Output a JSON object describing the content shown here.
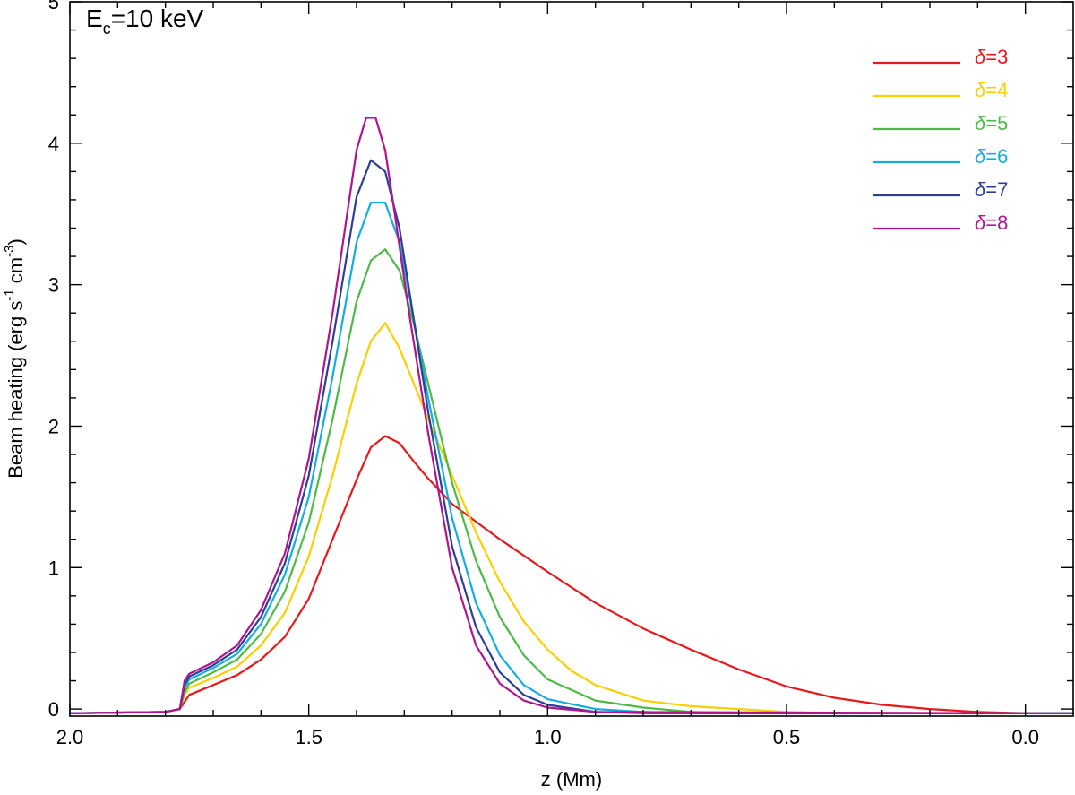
{
  "chart_data": {
    "type": "line",
    "annotation": {
      "main": "E",
      "sub": "c",
      "rest": "=10 keV"
    },
    "xlabel": "z (Mm)",
    "ylabel": {
      "part1": "Beam heating (erg s",
      "sup1": "-1",
      "part2": " cm",
      "sup2": "-3",
      "part3": ")"
    },
    "xlim": [
      2.0,
      -0.1
    ],
    "ylim": [
      -0.05,
      5.0
    ],
    "xaxis_reversed": true,
    "xticks": [
      2.0,
      1.5,
      1.0,
      0.5,
      0.0
    ],
    "xtick_labels": [
      "2.0",
      "1.5",
      "1.0",
      "0.5",
      "0.0"
    ],
    "yticks": [
      0,
      1,
      2,
      3,
      4,
      5
    ],
    "ytick_labels": [
      "0",
      "1",
      "2",
      "3",
      "4",
      "5"
    ],
    "legend_placement": "top-right",
    "series": [
      {
        "name": "δ=3",
        "greek": "δ",
        "suffix": "=3",
        "color": "#e8191b",
        "x": [
          2.0,
          1.8,
          1.77,
          1.76,
          1.75,
          1.7,
          1.65,
          1.6,
          1.55,
          1.5,
          1.45,
          1.4,
          1.37,
          1.34,
          1.31,
          1.28,
          1.25,
          1.2,
          1.1,
          1.0,
          0.9,
          0.8,
          0.7,
          0.6,
          0.5,
          0.4,
          0.3,
          0.2,
          0.1,
          0.0,
          -0.1
        ],
        "y": [
          -0.03,
          -0.02,
          0.0,
          0.05,
          0.1,
          0.17,
          0.24,
          0.35,
          0.51,
          0.78,
          1.2,
          1.62,
          1.85,
          1.93,
          1.88,
          1.75,
          1.63,
          1.45,
          1.2,
          0.97,
          0.75,
          0.57,
          0.42,
          0.28,
          0.16,
          0.08,
          0.03,
          0.0,
          -0.02,
          -0.03,
          -0.03
        ]
      },
      {
        "name": "δ=4",
        "greek": "δ",
        "suffix": "=4",
        "color": "#f9cf00",
        "x": [
          2.0,
          1.8,
          1.77,
          1.76,
          1.75,
          1.7,
          1.65,
          1.6,
          1.55,
          1.5,
          1.45,
          1.4,
          1.37,
          1.34,
          1.31,
          1.28,
          1.25,
          1.2,
          1.15,
          1.1,
          1.05,
          1.0,
          0.95,
          0.9,
          0.8,
          0.7,
          0.6,
          0.5,
          0.4,
          0.3,
          0.0,
          -0.1
        ],
        "y": [
          -0.03,
          -0.02,
          0.0,
          0.1,
          0.15,
          0.22,
          0.3,
          0.45,
          0.68,
          1.08,
          1.65,
          2.3,
          2.6,
          2.73,
          2.55,
          2.3,
          2.05,
          1.65,
          1.25,
          0.9,
          0.62,
          0.42,
          0.27,
          0.17,
          0.06,
          0.02,
          0.0,
          -0.02,
          -0.03,
          -0.03,
          -0.03,
          -0.03
        ]
      },
      {
        "name": "δ=5",
        "greek": "δ",
        "suffix": "=5",
        "color": "#4dba48",
        "x": [
          2.0,
          1.8,
          1.77,
          1.76,
          1.75,
          1.7,
          1.65,
          1.6,
          1.55,
          1.5,
          1.45,
          1.4,
          1.37,
          1.34,
          1.31,
          1.28,
          1.25,
          1.2,
          1.15,
          1.1,
          1.05,
          1.0,
          0.9,
          0.8,
          0.7,
          0.6,
          0.5,
          0.0,
          -0.1
        ],
        "y": [
          -0.03,
          -0.02,
          0.0,
          0.12,
          0.18,
          0.26,
          0.35,
          0.53,
          0.83,
          1.32,
          2.05,
          2.88,
          3.17,
          3.25,
          3.1,
          2.72,
          2.3,
          1.6,
          1.05,
          0.65,
          0.38,
          0.21,
          0.06,
          0.01,
          -0.02,
          -0.03,
          -0.03,
          -0.03,
          -0.03
        ]
      },
      {
        "name": "δ=6",
        "greek": "δ",
        "suffix": "=6",
        "color": "#12aee0",
        "x": [
          2.0,
          1.8,
          1.77,
          1.76,
          1.75,
          1.7,
          1.65,
          1.6,
          1.55,
          1.5,
          1.45,
          1.4,
          1.37,
          1.34,
          1.31,
          1.28,
          1.25,
          1.2,
          1.15,
          1.1,
          1.05,
          1.0,
          0.9,
          0.8,
          0.7,
          0.0,
          -0.1
        ],
        "y": [
          -0.03,
          -0.02,
          0.0,
          0.15,
          0.21,
          0.29,
          0.39,
          0.6,
          0.95,
          1.5,
          2.35,
          3.3,
          3.58,
          3.58,
          3.3,
          2.75,
          2.2,
          1.35,
          0.75,
          0.38,
          0.17,
          0.07,
          0.0,
          -0.02,
          -0.03,
          -0.03,
          -0.03
        ]
      },
      {
        "name": "δ=7",
        "greek": "δ",
        "suffix": "=7",
        "color": "#2e3f94",
        "x": [
          2.0,
          1.8,
          1.77,
          1.76,
          1.75,
          1.7,
          1.65,
          1.6,
          1.55,
          1.5,
          1.45,
          1.4,
          1.37,
          1.34,
          1.31,
          1.28,
          1.25,
          1.2,
          1.15,
          1.1,
          1.05,
          1.0,
          0.9,
          0.8,
          0.0,
          -0.1
        ],
        "y": [
          -0.03,
          -0.02,
          0.0,
          0.17,
          0.23,
          0.31,
          0.42,
          0.65,
          1.03,
          1.65,
          2.6,
          3.62,
          3.88,
          3.8,
          3.4,
          2.75,
          2.1,
          1.15,
          0.58,
          0.26,
          0.1,
          0.03,
          -0.02,
          -0.03,
          -0.03,
          -0.03
        ]
      },
      {
        "name": "δ=8",
        "greek": "δ",
        "suffix": "=8",
        "color": "#b1148f",
        "x": [
          2.0,
          1.8,
          1.77,
          1.76,
          1.75,
          1.7,
          1.65,
          1.6,
          1.55,
          1.5,
          1.45,
          1.4,
          1.38,
          1.36,
          1.34,
          1.32,
          1.29,
          1.25,
          1.2,
          1.15,
          1.1,
          1.05,
          1.0,
          0.9,
          0.0,
          -0.1
        ],
        "y": [
          -0.03,
          -0.02,
          0.0,
          0.2,
          0.25,
          0.33,
          0.45,
          0.7,
          1.1,
          1.77,
          2.8,
          3.95,
          4.18,
          4.18,
          3.95,
          3.5,
          2.8,
          1.95,
          1.0,
          0.45,
          0.18,
          0.06,
          0.01,
          -0.02,
          -0.03,
          -0.03
        ]
      }
    ]
  }
}
